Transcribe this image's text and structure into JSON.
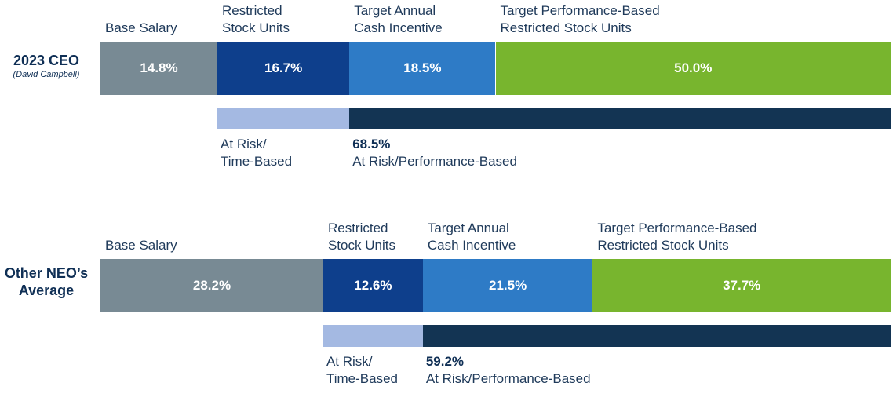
{
  "chart_data": [
    {
      "type": "bar",
      "orientation": "horizontal-stacked",
      "title": "2023 CEO",
      "subtitle": "(David Campbell)",
      "series": [
        {
          "name": "Base Salary",
          "value": 14.8,
          "label": "14.8%",
          "color": "#788a94"
        },
        {
          "name": "Restricted Stock Units",
          "value": 16.7,
          "label": "16.7%",
          "color": "#0e3f8c"
        },
        {
          "name": "Target Annual Cash Incentive",
          "value": 18.5,
          "label": "18.5%",
          "color": "#2e7bc6"
        },
        {
          "name": "Target Performance-Based Restricted Stock Units",
          "value": 50.0,
          "label": "50.0%",
          "color": "#78b52e"
        }
      ],
      "series_labels": [
        "Base Salary",
        "Restricted\nStock Units",
        "Target Annual\nCash Incentive",
        "Target Performance-Based\nRestricted Stock Units"
      ],
      "at_risk": [
        {
          "name": "At Risk/\nTime-Based",
          "value": 16.7,
          "pct_label": "",
          "color": "#a4b9e2"
        },
        {
          "name": "At Risk/Performance-Based",
          "value": 68.5,
          "pct_label": "68.5%",
          "color": "#133453"
        }
      ]
    },
    {
      "type": "bar",
      "orientation": "horizontal-stacked",
      "title": "Other NEO’s Average",
      "subtitle": "",
      "series": [
        {
          "name": "Base Salary",
          "value": 28.2,
          "label": "28.2%",
          "color": "#788a94"
        },
        {
          "name": "Restricted Stock Units",
          "value": 12.6,
          "label": "12.6%",
          "color": "#0e3f8c"
        },
        {
          "name": "Target Annual Cash Incentive",
          "value": 21.5,
          "label": "21.5%",
          "color": "#2e7bc6"
        },
        {
          "name": "Target Performance-Based Restricted Stock Units",
          "value": 37.7,
          "label": "37.7%",
          "color": "#78b52e"
        }
      ],
      "series_labels": [
        "Base Salary",
        "Restricted\nStock Units",
        "Target Annual\nCash Incentive",
        "Target Performance-Based\nRestricted Stock Units"
      ],
      "at_risk": [
        {
          "name": "At Risk/\nTime-Based",
          "value": 12.6,
          "pct_label": "",
          "color": "#a4b9e2"
        },
        {
          "name": "At Risk/Performance-Based",
          "value": 59.2,
          "pct_label": "59.2%",
          "color": "#133453"
        }
      ]
    }
  ]
}
